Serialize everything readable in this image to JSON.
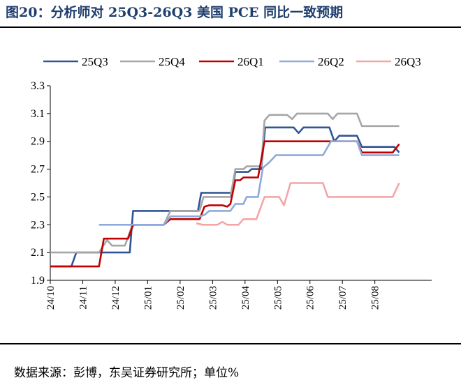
{
  "title": "图20：分析师对 25Q3-26Q3 美国 PCE 同比一致预期",
  "source": "数据来源：彭博，东吴证券研究所；单位%",
  "chart_data": {
    "type": "line",
    "title": "",
    "xlabel": "",
    "ylabel": "",
    "ylim": [
      1.9,
      3.3
    ],
    "yticks": [
      "3.3",
      "3.1",
      "2.9",
      "2.7",
      "2.5",
      "2.3",
      "2.1",
      "1.9"
    ],
    "xlim": [
      0,
      11.75
    ],
    "xticks": [
      "24/10",
      "24/11",
      "24/12",
      "25/01",
      "25/02",
      "25/03",
      "25/04",
      "25/05",
      "25/06",
      "25/07",
      "25/08"
    ],
    "grid": false,
    "legend": "top",
    "series": [
      {
        "name": "25Q3",
        "color": "#2f5597",
        "points": [
          [
            0,
            2.0
          ],
          [
            0.65,
            2.0
          ],
          [
            0.8,
            2.1
          ],
          [
            2.45,
            2.1
          ],
          [
            2.55,
            2.4
          ],
          [
            4.55,
            2.4
          ],
          [
            4.65,
            2.53
          ],
          [
            5.6,
            2.53
          ],
          [
            5.7,
            2.68
          ],
          [
            6.1,
            2.68
          ],
          [
            6.2,
            2.7
          ],
          [
            6.5,
            2.7
          ],
          [
            6.62,
            3.0
          ],
          [
            7.5,
            3.0
          ],
          [
            7.65,
            2.96
          ],
          [
            7.8,
            3.0
          ],
          [
            8.6,
            3.0
          ],
          [
            8.75,
            2.9
          ],
          [
            8.9,
            2.94
          ],
          [
            9.45,
            2.94
          ],
          [
            9.6,
            2.86
          ],
          [
            10.6,
            2.86
          ],
          [
            10.75,
            2.82
          ]
        ]
      },
      {
        "name": "25Q4",
        "color": "#a6a6a6",
        "points": [
          [
            0,
            2.1
          ],
          [
            1.5,
            2.1
          ],
          [
            1.75,
            2.19
          ],
          [
            1.9,
            2.15
          ],
          [
            2.3,
            2.15
          ],
          [
            2.5,
            2.28
          ],
          [
            2.6,
            2.3
          ],
          [
            3.5,
            2.3
          ],
          [
            3.7,
            2.4
          ],
          [
            4.6,
            2.4
          ],
          [
            4.72,
            2.5
          ],
          [
            5.55,
            2.5
          ],
          [
            5.7,
            2.7
          ],
          [
            5.95,
            2.7
          ],
          [
            6.05,
            2.72
          ],
          [
            6.5,
            2.72
          ],
          [
            6.6,
            3.05
          ],
          [
            6.75,
            3.09
          ],
          [
            7.3,
            3.09
          ],
          [
            7.45,
            3.06
          ],
          [
            7.6,
            3.1
          ],
          [
            8.55,
            3.1
          ],
          [
            8.7,
            3.06
          ],
          [
            8.85,
            3.1
          ],
          [
            9.45,
            3.1
          ],
          [
            9.6,
            3.01
          ],
          [
            10.75,
            3.01
          ]
        ]
      },
      {
        "name": "26Q1",
        "color": "#c00000",
        "points": [
          [
            0,
            2.0
          ],
          [
            1.5,
            2.0
          ],
          [
            1.65,
            2.2
          ],
          [
            2.4,
            2.2
          ],
          [
            2.55,
            2.3
          ],
          [
            3.5,
            2.3
          ],
          [
            3.7,
            2.34
          ],
          [
            4.6,
            2.34
          ],
          [
            4.75,
            2.43
          ],
          [
            4.9,
            2.44
          ],
          [
            5.3,
            2.44
          ],
          [
            5.45,
            2.43
          ],
          [
            5.55,
            2.45
          ],
          [
            5.7,
            2.62
          ],
          [
            5.85,
            2.62
          ],
          [
            5.95,
            2.64
          ],
          [
            6.4,
            2.64
          ],
          [
            6.6,
            2.9
          ],
          [
            8.75,
            2.9
          ],
          [
            8.9,
            2.9
          ],
          [
            9.45,
            2.9
          ],
          [
            9.6,
            2.82
          ],
          [
            10.55,
            2.82
          ],
          [
            10.75,
            2.88
          ]
        ]
      },
      {
        "name": "26Q2",
        "color": "#8eaadb",
        "points": [
          [
            1.5,
            2.3
          ],
          [
            3.5,
            2.3
          ],
          [
            3.7,
            2.36
          ],
          [
            4.6,
            2.36
          ],
          [
            4.75,
            2.37
          ],
          [
            4.9,
            2.4
          ],
          [
            5.55,
            2.4
          ],
          [
            5.7,
            2.45
          ],
          [
            5.95,
            2.45
          ],
          [
            6.05,
            2.5
          ],
          [
            6.4,
            2.5
          ],
          [
            6.55,
            2.71
          ],
          [
            6.75,
            2.75
          ],
          [
            6.95,
            2.8
          ],
          [
            8.4,
            2.8
          ],
          [
            8.65,
            2.9
          ],
          [
            9.45,
            2.9
          ],
          [
            9.6,
            2.8
          ],
          [
            10.75,
            2.8
          ]
        ]
      },
      {
        "name": "26Q3",
        "color": "#f4a6a6",
        "points": [
          [
            4.5,
            2.31
          ],
          [
            4.7,
            2.3
          ],
          [
            5.15,
            2.3
          ],
          [
            5.3,
            2.32
          ],
          [
            5.45,
            2.3
          ],
          [
            5.8,
            2.3
          ],
          [
            5.95,
            2.34
          ],
          [
            6.35,
            2.34
          ],
          [
            6.6,
            2.5
          ],
          [
            7.05,
            2.5
          ],
          [
            7.2,
            2.44
          ],
          [
            7.4,
            2.6
          ],
          [
            8.4,
            2.6
          ],
          [
            8.55,
            2.5
          ],
          [
            10.55,
            2.5
          ],
          [
            10.75,
            2.6
          ]
        ]
      }
    ]
  }
}
